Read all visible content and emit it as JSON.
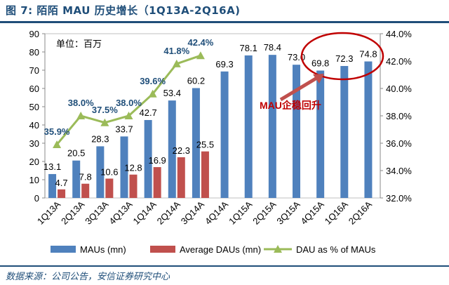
{
  "figure": {
    "label": "图 7:",
    "title": "陌陌 MAU 历史增长（1Q13A-2Q16A)",
    "source": "数据来源：公司公告，安信证券研究中心"
  },
  "chart_data": {
    "type": "bar",
    "unit_label": "单位：百万",
    "categories": [
      "1Q13A",
      "2Q13A",
      "3Q13A",
      "4Q13A",
      "1Q14A",
      "2Q14A",
      "3Q14A",
      "4Q14A",
      "1Q15A",
      "2Q15A",
      "3Q15A",
      "4Q15A",
      "1Q16A",
      "2Q16A"
    ],
    "series": [
      {
        "name": "MAUs (mn)",
        "axis": "left",
        "color": "#4f81bd",
        "values": [
          13.1,
          20.5,
          28.3,
          33.7,
          42.7,
          53.4,
          60.2,
          69.3,
          78.1,
          78.4,
          73.0,
          69.8,
          72.3,
          74.8
        ],
        "labels": [
          "13.1",
          "20.5",
          "28.3",
          "33.7",
          "42.7",
          "53.4",
          "60.2",
          "69.3",
          "78.1",
          "78.4",
          "73.0",
          "69.8",
          "72.3",
          "74.8"
        ]
      },
      {
        "name": "Average DAUs (mn)",
        "axis": "left",
        "color": "#c0504d",
        "values": [
          4.7,
          7.8,
          10.6,
          12.8,
          16.9,
          22.3,
          25.5,
          null,
          null,
          null,
          null,
          null,
          null,
          null
        ],
        "labels": [
          "4.7",
          "7.8",
          "10.6",
          "12.8",
          "16.9",
          "22.3",
          "25.5"
        ]
      },
      {
        "name": "DAU as % of MAUs",
        "axis": "right",
        "type": "line",
        "color": "#9bbb59",
        "values": [
          35.9,
          38.0,
          37.5,
          38.0,
          39.6,
          41.8,
          42.4,
          null,
          null,
          null,
          null,
          null,
          null,
          null
        ],
        "labels": [
          "35.9%",
          "38.0%",
          "37.5%",
          "38.0%",
          "39.6%",
          "41.8%",
          "42.4%"
        ]
      }
    ],
    "y_left": {
      "min": 0,
      "max": 90,
      "ticks": [
        "0",
        "10",
        "20",
        "30",
        "40",
        "50",
        "60",
        "70",
        "80",
        "90"
      ]
    },
    "y_right": {
      "min": 32,
      "max": 44,
      "ticks": [
        "32.0%",
        "34.0%",
        "36.0%",
        "38.0%",
        "40.0%",
        "42.0%",
        "44.0%"
      ]
    },
    "annotation": {
      "text": "MAU企稳回升",
      "color": "#c00000"
    }
  }
}
